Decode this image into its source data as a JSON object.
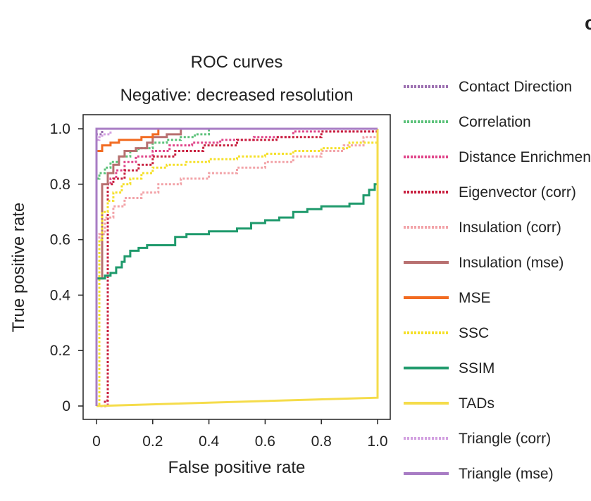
{
  "panel_letter": "c",
  "chart_data": {
    "type": "line",
    "title": "ROC curves",
    "subtitle": "Negative: decreased resolution",
    "xlabel": "False positive rate",
    "ylabel": "True positive rate",
    "xlim": [
      0,
      1
    ],
    "ylim": [
      0,
      1
    ],
    "x_ticks": [
      0,
      0.2,
      0.4,
      0.6,
      0.8,
      1.0
    ],
    "x_tick_labels": [
      "0",
      "0.2",
      "0.4",
      "0.6",
      "0.8",
      "1.0"
    ],
    "y_ticks": [
      0,
      0.2,
      0.4,
      0.6,
      0.8,
      1.0
    ],
    "y_tick_labels": [
      "0",
      "0.2",
      "0.4",
      "0.6",
      "0.8",
      "1.0"
    ],
    "grid": false,
    "legend_position": "right",
    "series": [
      {
        "name": "Contact Direction",
        "color": "#9b6fb0",
        "style": "dotted",
        "x": [
          0,
          0,
          0.02,
          0.02,
          1.0
        ],
        "y": [
          0,
          0.98,
          0.98,
          1.0,
          1.0
        ]
      },
      {
        "name": "Correlation",
        "color": "#5cc27a",
        "style": "dotted",
        "x": [
          0,
          0,
          0.01,
          0.03,
          0.05,
          0.08,
          0.12,
          0.15,
          0.2,
          0.25,
          0.3,
          0.35,
          0.4,
          1.0
        ],
        "y": [
          0,
          0.82,
          0.84,
          0.86,
          0.88,
          0.9,
          0.92,
          0.93,
          0.95,
          0.96,
          0.97,
          0.98,
          1.0,
          1.0
        ]
      },
      {
        "name": "Distance Enrichment",
        "color": "#e0468a",
        "style": "dotted",
        "x": [
          0,
          0.04,
          0.04,
          0.05,
          0.07,
          0.1,
          0.14,
          0.2,
          0.26,
          0.34,
          0.44,
          0.56,
          0.7,
          1.0
        ],
        "y": [
          0,
          0.0,
          0.8,
          0.82,
          0.85,
          0.88,
          0.9,
          0.92,
          0.94,
          0.95,
          0.96,
          0.97,
          0.99,
          1.0
        ]
      },
      {
        "name": "Eigenvector (corr)",
        "color": "#c8203f",
        "style": "dotted",
        "x": [
          0,
          0.03,
          0.04,
          0.04,
          0.06,
          0.1,
          0.15,
          0.2,
          0.28,
          0.38,
          0.5,
          0.64,
          0.8,
          1.0
        ],
        "y": [
          0,
          0.02,
          0.02,
          0.8,
          0.82,
          0.85,
          0.87,
          0.9,
          0.92,
          0.94,
          0.96,
          0.97,
          0.99,
          1.0
        ]
      },
      {
        "name": "Insulation (corr)",
        "color": "#f2a3a8",
        "style": "dotted",
        "x": [
          0,
          0.01,
          0.01,
          0.03,
          0.06,
          0.1,
          0.16,
          0.22,
          0.3,
          0.4,
          0.5,
          0.6,
          0.7,
          0.8,
          0.88,
          0.95,
          1.0
        ],
        "y": [
          0,
          0.55,
          0.62,
          0.68,
          0.72,
          0.75,
          0.77,
          0.8,
          0.82,
          0.84,
          0.86,
          0.88,
          0.9,
          0.92,
          0.94,
          0.97,
          1.0
        ]
      },
      {
        "name": "Insulation (mse)",
        "color": "#b87070",
        "style": "solid",
        "x": [
          0,
          0.0,
          0.02,
          0.02,
          0.04,
          0.06,
          0.08,
          0.1,
          0.14,
          0.18,
          0.2,
          0.25,
          0.3,
          1.0
        ],
        "y": [
          0,
          0.46,
          0.46,
          0.8,
          0.84,
          0.87,
          0.9,
          0.92,
          0.93,
          0.95,
          0.97,
          0.98,
          1.0,
          1.0
        ]
      },
      {
        "name": "MSE",
        "color": "#f26b21",
        "style": "solid",
        "x": [
          0,
          0.0,
          0.02,
          0.05,
          0.08,
          0.12,
          0.16,
          0.2,
          0.22,
          1.0
        ],
        "y": [
          0,
          0.92,
          0.94,
          0.95,
          0.96,
          0.96,
          0.97,
          0.98,
          1.0,
          1.0
        ]
      },
      {
        "name": "SSC",
        "color": "#f5e02a",
        "style": "dotted",
        "x": [
          0,
          0.01,
          0.02,
          0.04,
          0.06,
          0.09,
          0.12,
          0.16,
          0.2,
          0.25,
          0.32,
          0.4,
          0.5,
          0.6,
          0.7,
          0.8,
          0.9,
          1.0
        ],
        "y": [
          0,
          0.6,
          0.7,
          0.74,
          0.77,
          0.8,
          0.82,
          0.84,
          0.86,
          0.87,
          0.88,
          0.89,
          0.9,
          0.91,
          0.92,
          0.93,
          0.95,
          1.0
        ]
      },
      {
        "name": "SSIM",
        "color": "#1f9a6c",
        "style": "solid",
        "x": [
          0,
          0.03,
          0.05,
          0.07,
          0.09,
          0.1,
          0.12,
          0.15,
          0.18,
          0.22,
          0.28,
          0.32,
          0.4,
          0.5,
          0.55,
          0.6,
          0.65,
          0.7,
          0.75,
          0.8,
          0.85,
          0.9,
          0.95,
          0.97,
          0.99,
          1.0
        ],
        "y": [
          0.46,
          0.47,
          0.48,
          0.5,
          0.52,
          0.54,
          0.56,
          0.57,
          0.58,
          0.58,
          0.61,
          0.62,
          0.63,
          0.64,
          0.66,
          0.67,
          0.68,
          0.7,
          0.71,
          0.72,
          0.72,
          0.73,
          0.76,
          0.78,
          0.8,
          0.85
        ]
      },
      {
        "name": "TADs",
        "color": "#f5dc4a",
        "style": "solid",
        "x": [
          0,
          1.0,
          1.0
        ],
        "y": [
          0,
          0.03,
          1.0
        ]
      },
      {
        "name": "Triangle (corr)",
        "color": "#d2a0e0",
        "style": "dotted",
        "x": [
          0,
          0,
          0.01,
          0.02,
          0.05,
          1.0
        ],
        "y": [
          0,
          0.96,
          0.97,
          0.98,
          1.0,
          1.0
        ]
      },
      {
        "name": "Triangle (mse)",
        "color": "#a87cc4",
        "style": "solid",
        "x": [
          0,
          0,
          1.0
        ],
        "y": [
          0,
          1.0,
          1.0
        ]
      }
    ]
  }
}
